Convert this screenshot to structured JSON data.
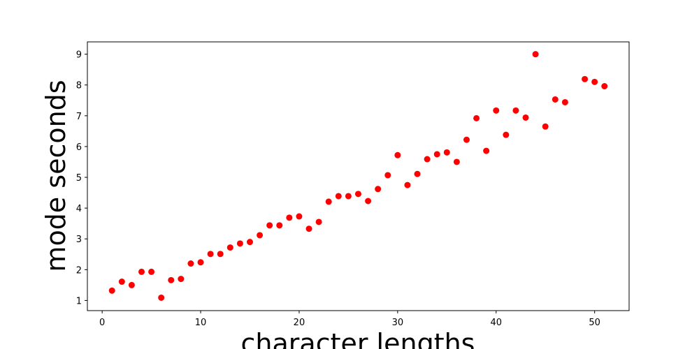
{
  "chart_data": {
    "type": "scatter",
    "color": "#ff0000",
    "xlabel": "character lengths",
    "ylabel": "mode seconds",
    "x": [
      1,
      2,
      3,
      4,
      5,
      6,
      7,
      8,
      9,
      10,
      11,
      12,
      13,
      14,
      15,
      16,
      17,
      18,
      19,
      20,
      21,
      22,
      23,
      24,
      25,
      26,
      27,
      28,
      29,
      30,
      31,
      32,
      33,
      34,
      35,
      36,
      37,
      38,
      39,
      40,
      41,
      42,
      43,
      44,
      45,
      46,
      47,
      49,
      50,
      51
    ],
    "values": [
      1.32,
      1.61,
      1.5,
      1.93,
      1.93,
      1.09,
      1.66,
      1.7,
      2.2,
      2.24,
      2.51,
      2.51,
      2.72,
      2.85,
      2.9,
      3.12,
      3.44,
      3.44,
      3.69,
      3.73,
      3.33,
      3.55,
      4.21,
      4.39,
      4.39,
      4.46,
      4.23,
      4.62,
      5.07,
      5.72,
      4.75,
      5.11,
      5.59,
      5.75,
      5.81,
      5.5,
      6.22,
      6.92,
      5.86,
      7.17,
      6.38,
      7.17,
      6.94,
      9.0,
      6.65,
      7.53,
      7.44,
      8.19,
      8.1,
      7.96
    ],
    "xlim": [
      -1.5,
      53.5
    ],
    "xticks": [
      0,
      10,
      20,
      30,
      40,
      50
    ],
    "ylim": [
      0.67,
      9.4
    ],
    "yticks": [
      1,
      2,
      3,
      4,
      5,
      6,
      7,
      8,
      9
    ]
  }
}
